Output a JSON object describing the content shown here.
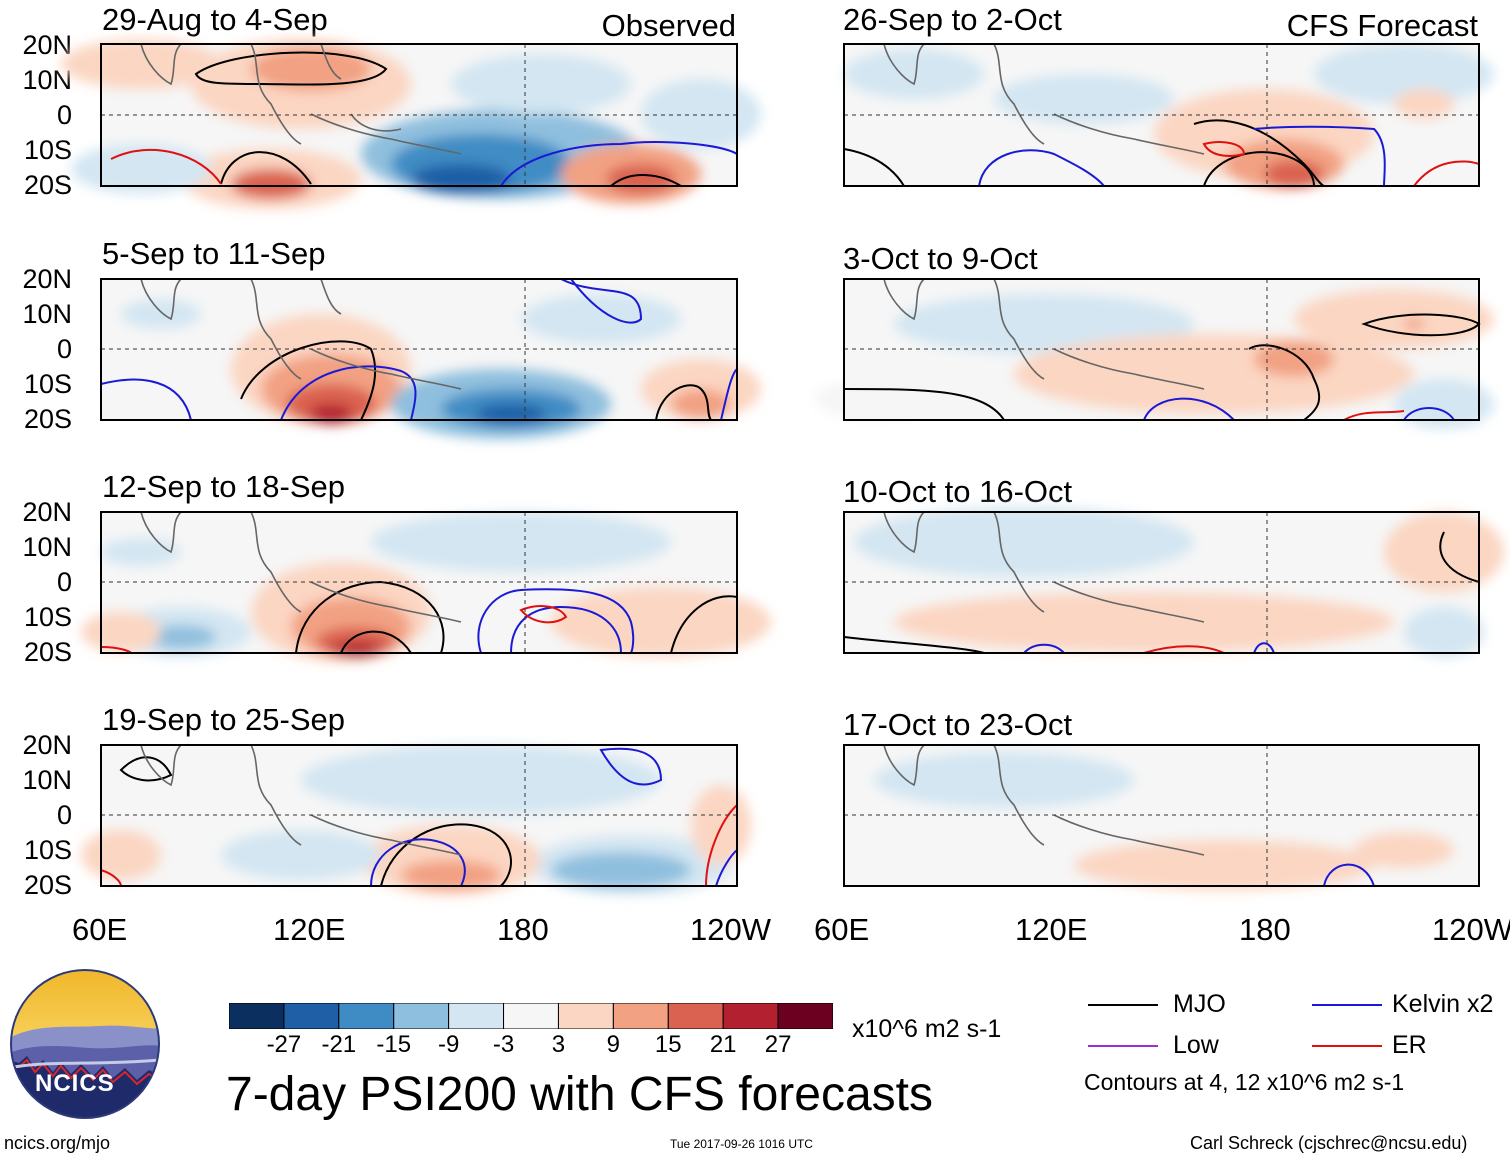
{
  "header": {
    "observed_label": "Observed",
    "forecast_label": "CFS Forecast"
  },
  "panels_left": [
    {
      "title": "29-Aug to 4-Sep"
    },
    {
      "title": "5-Sep to 11-Sep"
    },
    {
      "title": "12-Sep to 18-Sep"
    },
    {
      "title": "19-Sep to 25-Sep"
    }
  ],
  "panels_right": [
    {
      "title": "26-Sep to 2-Oct"
    },
    {
      "title": "3-Oct to 9-Oct"
    },
    {
      "title": "10-Oct to 16-Oct"
    },
    {
      "title": "17-Oct to 23-Oct"
    }
  ],
  "lat_labels": [
    "20N",
    "10N",
    "0",
    "10S",
    "20S"
  ],
  "lon_labels": [
    "60E",
    "120E",
    "180",
    "120W"
  ],
  "colorbar": {
    "unit": "x10^6 m2 s-1",
    "tick_labels": [
      "-27",
      "-21",
      "-15",
      "-9",
      "-3",
      "3",
      "9",
      "15",
      "21",
      "27"
    ],
    "colors": [
      "#0b2f5f",
      "#1f5fa6",
      "#3f8cc4",
      "#8fbfde",
      "#d3e6f2",
      "#f6f6f6",
      "#fbd6c2",
      "#f2a183",
      "#da6250",
      "#b3202f",
      "#6b0020"
    ]
  },
  "main_title": "7-day PSI200 with CFS forecasts",
  "legend": {
    "items": [
      {
        "label": "MJO",
        "color": "#000000"
      },
      {
        "label": "Kelvin x2",
        "color": "#1a1ad6"
      },
      {
        "label": "Low",
        "color": "#9a2fd6"
      },
      {
        "label": "ER",
        "color": "#e01010"
      }
    ],
    "contour_note": "Contours at 4, 12 x10^6 m2 s-1"
  },
  "logo": {
    "text": "NCICS"
  },
  "footer": {
    "url": "ncics.org/mjo",
    "timestamp": "Tue 2017-09-26 1016 UTC",
    "credit": "Carl Schreck (cjschrec@ncsu.edu)"
  }
}
